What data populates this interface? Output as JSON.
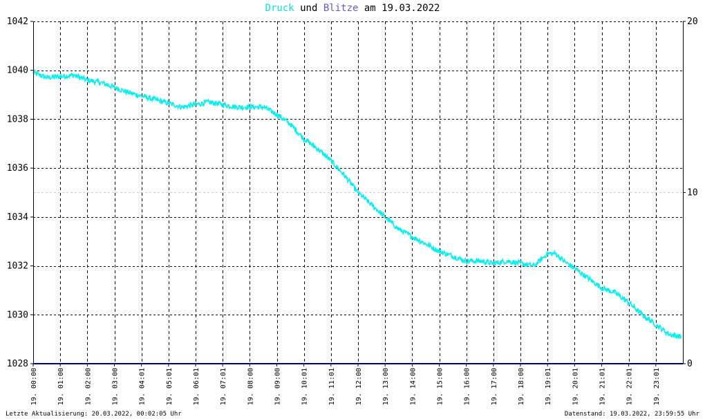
{
  "title": {
    "part1": "Druck",
    "part2": "und",
    "part3": "Blitze",
    "part4": "am 19.03.2022",
    "color1": "#00e5e5",
    "color3": "#6a5acd"
  },
  "footer": {
    "left": "Letzte Aktualisierung: 20.03.2022, 00:02:05 Uhr",
    "right": "Datenstand: 19.03.2022, 23:59:55 Uhr"
  },
  "chart_data": {
    "type": "line",
    "title": "Druck und Blitze am 19.03.2022",
    "xlabel": "",
    "ylabel": "",
    "x_ticks": [
      "19. 00:00",
      "19. 01:00",
      "19. 02:00",
      "19. 03:00",
      "19. 04:01",
      "19. 05:01",
      "19. 06:01",
      "19. 07:01",
      "19. 08:00",
      "19. 09:00",
      "19. 10:01",
      "19. 11:01",
      "19. 12:00",
      "19. 13:00",
      "19. 14:00",
      "19. 15:00",
      "19. 16:00",
      "19. 17:00",
      "19. 18:00",
      "19. 19:01",
      "19. 20:01",
      "19. 21:01",
      "19. 22:01",
      "19. 23:01"
    ],
    "xlim_hours": [
      0,
      24
    ],
    "ylim_left": [
      1028,
      1042
    ],
    "y_ticks_left": [
      1028,
      1030,
      1032,
      1034,
      1036,
      1038,
      1040,
      1042
    ],
    "ylim_right": [
      0,
      20
    ],
    "y_ticks_right": [
      0,
      10,
      20
    ],
    "grid": true,
    "series": [
      {
        "name": "Druck",
        "color": "#00f0f0",
        "axis": "left",
        "x_hours": [
          0,
          0.5,
          1,
          1.5,
          2,
          2.5,
          3,
          3.5,
          4,
          4.5,
          5,
          5.5,
          6,
          6.5,
          7,
          7.5,
          8,
          8.5,
          9,
          9.5,
          10,
          10.5,
          11,
          11.5,
          12,
          12.5,
          13,
          13.5,
          14,
          14.5,
          15,
          15.5,
          16,
          16.5,
          17,
          17.5,
          18,
          18.5,
          19,
          19.3,
          19.6,
          20,
          20.5,
          21,
          21.5,
          22,
          22.5,
          23,
          23.5,
          23.95
        ],
        "values": [
          1039.9,
          1039.7,
          1039.75,
          1039.8,
          1039.6,
          1039.5,
          1039.3,
          1039.1,
          1038.95,
          1038.8,
          1038.65,
          1038.5,
          1038.6,
          1038.7,
          1038.6,
          1038.5,
          1038.5,
          1038.5,
          1038.2,
          1037.8,
          1037.2,
          1036.8,
          1036.3,
          1035.7,
          1035.0,
          1034.5,
          1034.0,
          1033.5,
          1033.2,
          1032.9,
          1032.6,
          1032.4,
          1032.2,
          1032.2,
          1032.1,
          1032.2,
          1032.1,
          1032.0,
          1032.5,
          1032.5,
          1032.2,
          1031.9,
          1031.5,
          1031.1,
          1030.9,
          1030.5,
          1030.0,
          1029.6,
          1029.2,
          1029.1
        ]
      },
      {
        "name": "Blitze",
        "color": "#00007f",
        "axis": "right",
        "x_hours": [
          0,
          24
        ],
        "values": [
          0,
          0
        ]
      }
    ]
  }
}
